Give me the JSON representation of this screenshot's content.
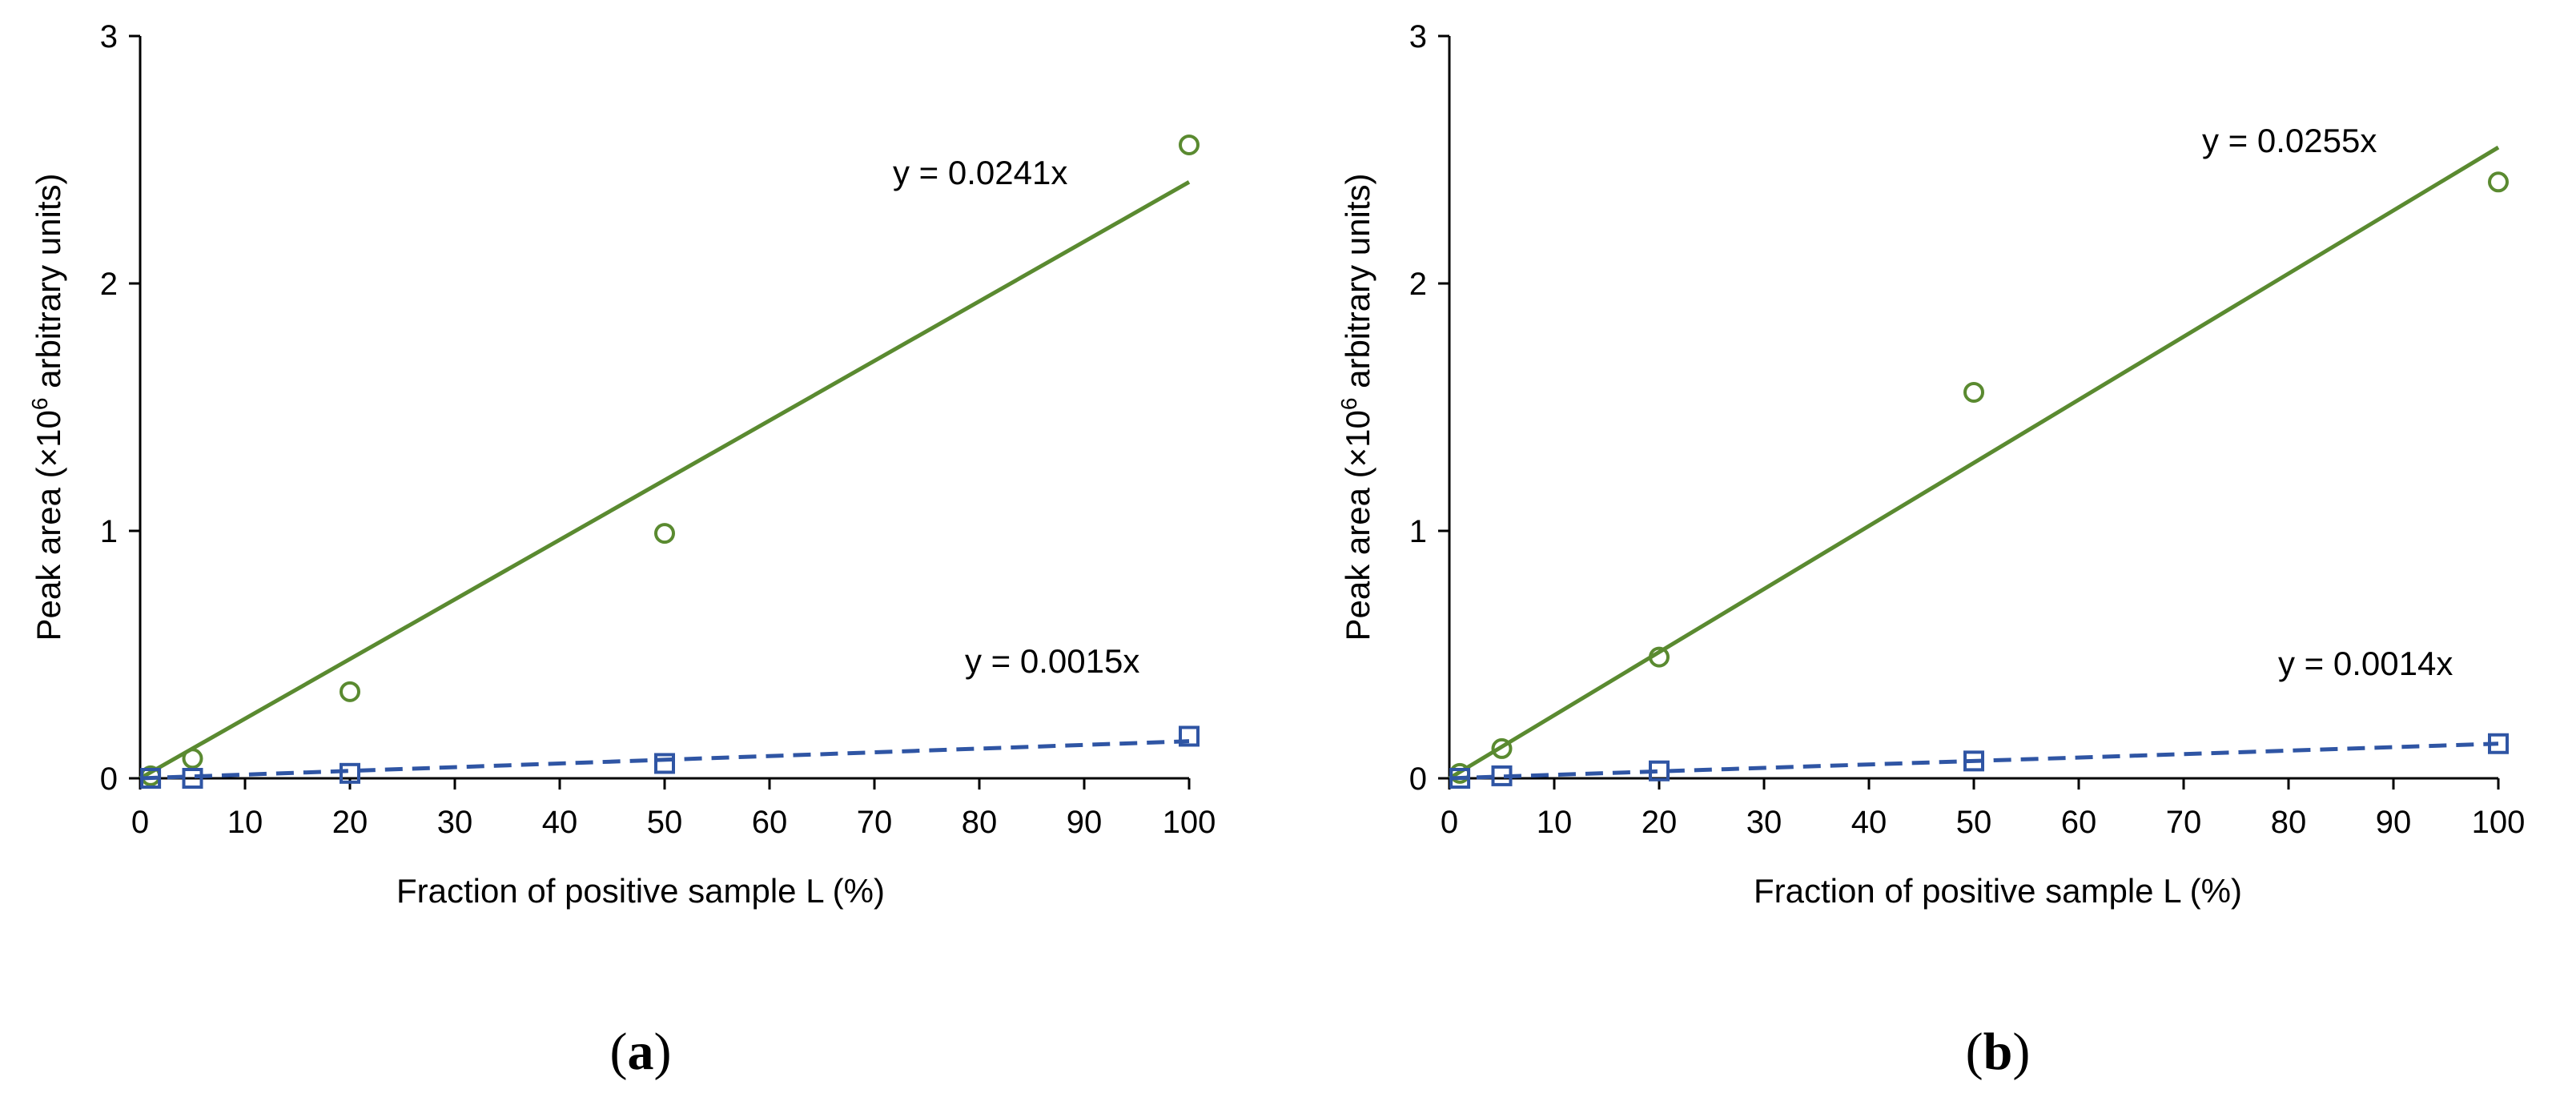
{
  "chart_data": [
    {
      "panel": "a",
      "type": "scatter",
      "xlabel": "Fraction of positive sample L (%)",
      "ylabel_prefix": "Peak area (×10",
      "ylabel_sup": "6",
      "ylabel_suffix": " arbitrary units)",
      "xlim": [
        0,
        100
      ],
      "ylim": [
        0,
        3
      ],
      "xticks": [
        0,
        10,
        20,
        30,
        40,
        50,
        60,
        70,
        80,
        90,
        100
      ],
      "yticks": [
        0,
        1,
        2,
        3
      ],
      "grid": false,
      "series": [
        {
          "name": "green circles",
          "marker": "circle",
          "color": "#5a8a30",
          "x": [
            1,
            5,
            20,
            50,
            100
          ],
          "y": [
            0.01,
            0.08,
            0.35,
            0.99,
            2.56
          ],
          "fit": {
            "slope": 0.0241,
            "style": "solid",
            "label": "y = 0.0241x"
          }
        },
        {
          "name": "blue squares",
          "marker": "square",
          "color": "#2f55a4",
          "x": [
            1,
            5,
            20,
            50,
            100
          ],
          "y": [
            0.0,
            0.0,
            0.02,
            0.06,
            0.17
          ],
          "fit": {
            "slope": 0.0015,
            "style": "dashed",
            "label": "y = 0.0015x"
          }
        }
      ]
    },
    {
      "panel": "b",
      "type": "scatter",
      "xlabel": "Fraction of positive sample L (%)",
      "ylabel_prefix": "Peak area (×10",
      "ylabel_sup": "6",
      "ylabel_suffix": " arbitrary units)",
      "xlim": [
        0,
        100
      ],
      "ylim": [
        0,
        3
      ],
      "xticks": [
        0,
        10,
        20,
        30,
        40,
        50,
        60,
        70,
        80,
        90,
        100
      ],
      "yticks": [
        0,
        1,
        2,
        3
      ],
      "grid": false,
      "series": [
        {
          "name": "green circles",
          "marker": "circle",
          "color": "#5a8a30",
          "x": [
            1,
            5,
            20,
            50,
            100
          ],
          "y": [
            0.02,
            0.12,
            0.49,
            1.56,
            2.41
          ],
          "fit": {
            "slope": 0.0255,
            "style": "solid",
            "label": "y = 0.0255x"
          }
        },
        {
          "name": "blue squares",
          "marker": "square",
          "color": "#2f55a4",
          "x": [
            1,
            5,
            20,
            50,
            100
          ],
          "y": [
            0.0,
            0.01,
            0.03,
            0.07,
            0.14
          ],
          "fit": {
            "slope": 0.0014,
            "style": "dashed",
            "label": "y = 0.0014x"
          }
        }
      ]
    }
  ],
  "panel_labels": [
    "(a)",
    "(b)"
  ]
}
